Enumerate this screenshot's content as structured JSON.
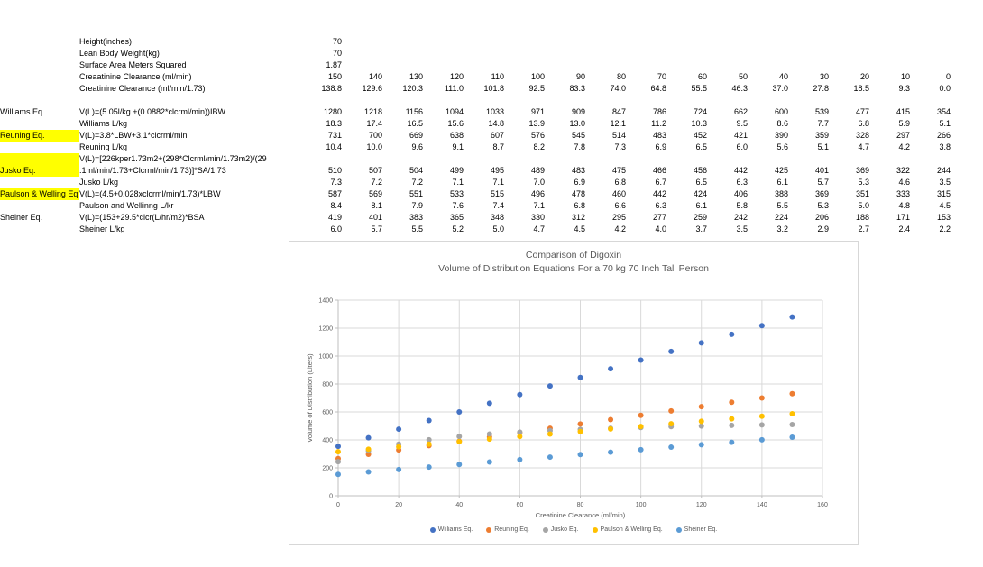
{
  "spreadsheet": {
    "rows": [
      {
        "label": "",
        "desc": "Height(inches)",
        "highlight": false,
        "values": [
          "70"
        ]
      },
      {
        "label": "",
        "desc": "Lean Body Weight(kg)",
        "highlight": false,
        "values": [
          "70"
        ]
      },
      {
        "label": "",
        "desc": "Surface Area Meters Squared",
        "highlight": false,
        "values": [
          "1.87"
        ]
      },
      {
        "label": "",
        "desc": "Creaatinine Clearance (ml/min)",
        "highlight": false,
        "values": [
          "150",
          "140",
          "130",
          "120",
          "110",
          "100",
          "90",
          "80",
          "70",
          "60",
          "50",
          "40",
          "30",
          "20",
          "10",
          "0"
        ]
      },
      {
        "label": "",
        "desc": "Creatinine Clearance (ml/min/1.73)",
        "highlight": false,
        "values": [
          "138.8",
          "129.6",
          "120.3",
          "111.0",
          "101.8",
          "92.5",
          "83.3",
          "74.0",
          "64.8",
          "55.5",
          "46.3",
          "37.0",
          "27.8",
          "18.5",
          "9.3",
          "0.0"
        ]
      },
      {
        "label": "",
        "desc": "",
        "highlight": false,
        "values": []
      },
      {
        "label": "Williams Eq.",
        "desc": "V(L)=(5.05l/kg +(0.0882*clcrml/min))IBW",
        "highlight": false,
        "values": [
          "1280",
          "1218",
          "1156",
          "1094",
          "1033",
          "971",
          "909",
          "847",
          "786",
          "724",
          "662",
          "600",
          "539",
          "477",
          "415",
          "354"
        ]
      },
      {
        "label": "",
        "desc": "Williams L/kg",
        "highlight": false,
        "values": [
          "18.3",
          "17.4",
          "16.5",
          "15.6",
          "14.8",
          "13.9",
          "13.0",
          "12.1",
          "11.2",
          "10.3",
          "9.5",
          "8.6",
          "7.7",
          "6.8",
          "5.9",
          "5.1"
        ]
      },
      {
        "label": "Reuning Eq.",
        "desc": "V(L)=3.8*LBW+3.1*clcrml/min",
        "highlight": true,
        "values": [
          "731",
          "700",
          "669",
          "638",
          "607",
          "576",
          "545",
          "514",
          "483",
          "452",
          "421",
          "390",
          "359",
          "328",
          "297",
          "266"
        ]
      },
      {
        "label": "",
        "desc": "Reuning L/kg",
        "highlight": false,
        "values": [
          "10.4",
          "10.0",
          "9.6",
          "9.1",
          "8.7",
          "8.2",
          "7.8",
          "7.3",
          "6.9",
          "6.5",
          "6.0",
          "5.6",
          "5.1",
          "4.7",
          "4.2",
          "3.8"
        ]
      },
      {
        "label": "",
        "desc": "V(L)=[226kper1.73m2+(298*Clcrml/min/1.73m2)/(29",
        "highlight": true,
        "values": []
      },
      {
        "label": "Jusko Eq.",
        "desc": ".1ml/min/1.73+Clcrml/min/1.73)]*SA/1.73",
        "highlight": true,
        "values": [
          "510",
          "507",
          "504",
          "499",
          "495",
          "489",
          "483",
          "475",
          "466",
          "456",
          "442",
          "425",
          "401",
          "369",
          "322",
          "244"
        ]
      },
      {
        "label": "",
        "desc": "Jusko L/kg",
        "highlight": false,
        "values": [
          "7.3",
          "7.2",
          "7.2",
          "7.1",
          "7.1",
          "7.0",
          "6.9",
          "6.8",
          "6.7",
          "6.5",
          "6.3",
          "6.1",
          "5.7",
          "5.3",
          "4.6",
          "3.5"
        ]
      },
      {
        "label": "Paulson & Welling Eq",
        "desc": "V(L)=(4.5+0.028xclcrml/min/1.73)*LBW",
        "highlight": true,
        "values": [
          "587",
          "569",
          "551",
          "533",
          "515",
          "496",
          "478",
          "460",
          "442",
          "424",
          "406",
          "388",
          "369",
          "351",
          "333",
          "315"
        ]
      },
      {
        "label": "",
        "desc": "Paulson and Wellinng L/kr",
        "highlight": false,
        "values": [
          "8.4",
          "8.1",
          "7.9",
          "7.6",
          "7.4",
          "7.1",
          "6.8",
          "6.6",
          "6.3",
          "6.1",
          "5.8",
          "5.5",
          "5.3",
          "5.0",
          "4.8",
          "4.5"
        ]
      },
      {
        "label": "Sheiner Eq.",
        "desc": "V(L)=(153+29.5*clcr(L/hr/m2)*BSA",
        "highlight": false,
        "values": [
          "419",
          "401",
          "383",
          "365",
          "348",
          "330",
          "312",
          "295",
          "277",
          "259",
          "242",
          "224",
          "206",
          "188",
          "171",
          "153"
        ]
      },
      {
        "label": "",
        "desc": "Sheiner L/kg",
        "highlight": false,
        "values": [
          "6.0",
          "5.7",
          "5.5",
          "5.2",
          "5.0",
          "4.7",
          "4.5",
          "4.2",
          "4.0",
          "3.7",
          "3.5",
          "3.2",
          "2.9",
          "2.7",
          "2.4",
          "2.2"
        ]
      }
    ]
  },
  "chart_data": {
    "type": "scatter",
    "title": "Comparison of Digoxin",
    "subtitle": "Volume of Distribution Equations For a 70 kg 70 Inch Tall Person",
    "xlabel": "Creatinine Clearance (ml/min)",
    "ylabel": "Volume of Distribution (Liters)",
    "xlim": [
      0,
      160
    ],
    "ylim": [
      0,
      1400
    ],
    "xticks": [
      0,
      20,
      40,
      60,
      80,
      100,
      120,
      140,
      160
    ],
    "yticks": [
      0,
      200,
      400,
      600,
      800,
      1000,
      1200,
      1400
    ],
    "grid": true,
    "legend_position": "bottom",
    "x": [
      0,
      10,
      20,
      30,
      40,
      50,
      60,
      70,
      80,
      90,
      100,
      110,
      120,
      130,
      140,
      150
    ],
    "series": [
      {
        "name": "Williams Eq.",
        "color": "#4472C4",
        "values": [
          354,
          415,
          477,
          539,
          600,
          662,
          724,
          786,
          847,
          909,
          971,
          1033,
          1094,
          1156,
          1218,
          1280
        ]
      },
      {
        "name": "Reuning Eq.",
        "color": "#ED7D31",
        "values": [
          266,
          297,
          328,
          359,
          390,
          421,
          452,
          483,
          514,
          545,
          576,
          607,
          638,
          669,
          700,
          731
        ]
      },
      {
        "name": "Jusko Eq.",
        "color": "#A5A5A5",
        "values": [
          244,
          322,
          369,
          401,
          425,
          442,
          456,
          466,
          475,
          483,
          489,
          495,
          499,
          504,
          507,
          510
        ]
      },
      {
        "name": "Paulson & Welling Eq.",
        "color": "#FFC000",
        "values": [
          315,
          333,
          351,
          369,
          388,
          406,
          424,
          442,
          460,
          478,
          496,
          515,
          533,
          551,
          569,
          587
        ]
      },
      {
        "name": "Sheiner Eq.",
        "color": "#5B9BD5",
        "values": [
          153,
          171,
          188,
          206,
          224,
          242,
          259,
          277,
          295,
          312,
          330,
          348,
          365,
          383,
          401,
          419
        ]
      }
    ],
    "colors": {
      "grid": "#D9D9D9",
      "axis": "#BFBFBF",
      "text": "#595959",
      "highlight": "#FFFF00"
    }
  }
}
